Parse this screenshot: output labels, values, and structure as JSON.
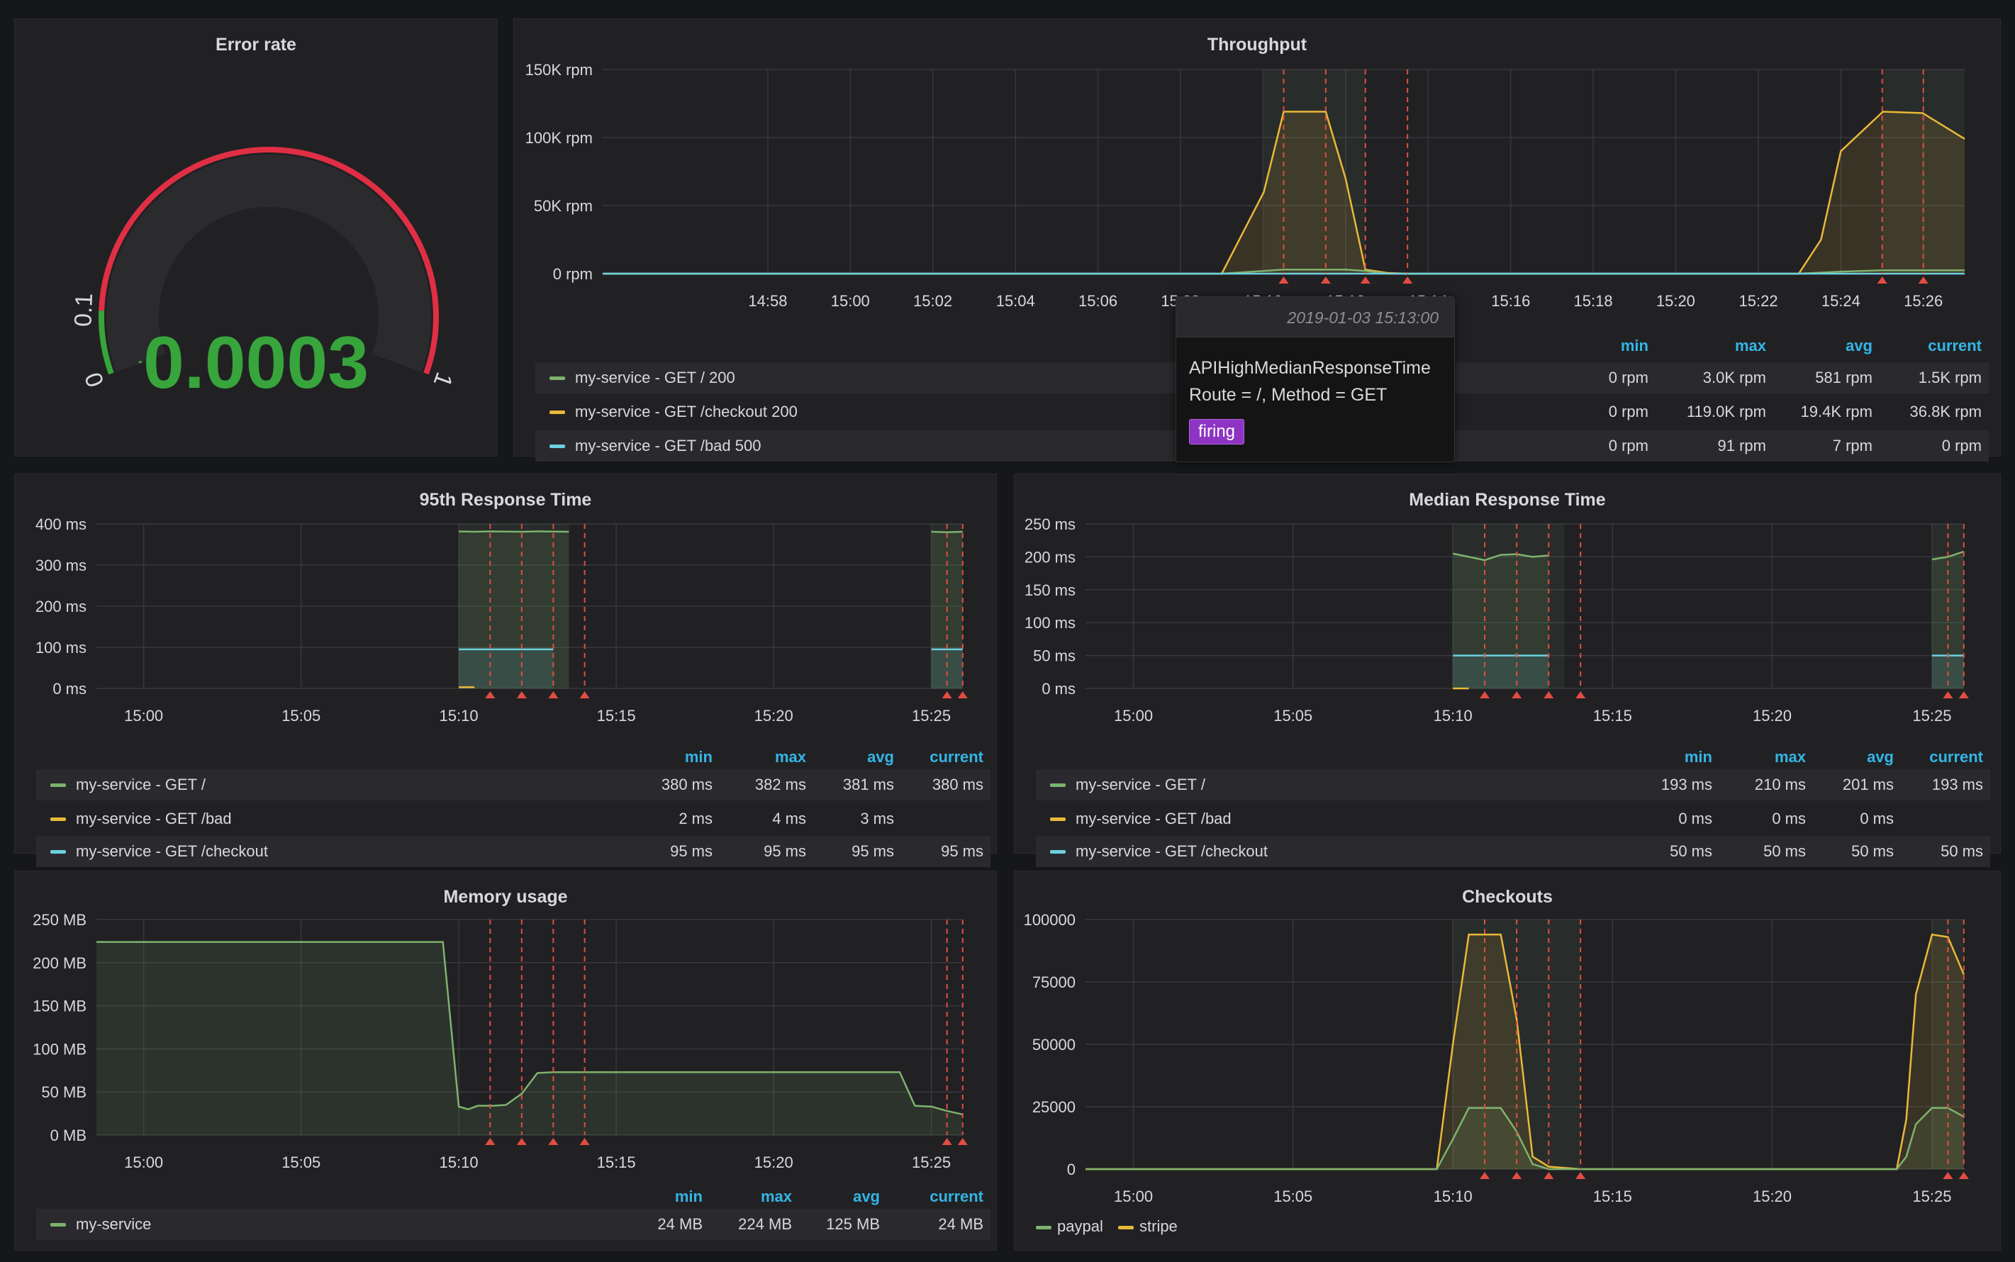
{
  "colors": {
    "green": "#7eb26d",
    "yellow": "#eab839",
    "cyan": "#6ed0e0",
    "red": "#e02f44",
    "alertRed": "#e24d42",
    "blue": "#33b5e5",
    "gaugeGreen": "#37a53b"
  },
  "legend_headers": {
    "min": "min",
    "max": "max",
    "avg": "avg",
    "current": "current"
  },
  "error_rate": {
    "title": "Error rate",
    "value": 0.0003,
    "value_text": "0.0003",
    "min_label": "0",
    "threshold_label": "0.1",
    "max_label": "1",
    "threshold": 0.1,
    "max": 1
  },
  "throughput": {
    "title": "Throughput",
    "legend": [
      {
        "name": "my-service - GET / 200",
        "min": "0 rpm",
        "max": "3.0K rpm",
        "avg": "581 rpm",
        "current": "1.5K rpm"
      },
      {
        "name": "my-service - GET /checkout 200",
        "min": "0 rpm",
        "max": "119.0K rpm",
        "avg": "19.4K rpm",
        "current": "36.8K rpm"
      },
      {
        "name": "my-service - GET /bad 500",
        "min": "0 rpm",
        "max": "91 rpm",
        "avg": "7 rpm",
        "current": "0 rpm"
      }
    ],
    "tooltip": {
      "time": "2019-01-03 15:13:00",
      "title": "APIHighMedianResponseTime",
      "detail": "Route = /, Method = GET",
      "state": "firing"
    }
  },
  "p95": {
    "title": "95th Response Time",
    "legend": [
      {
        "name": "my-service - GET /",
        "min": "380 ms",
        "max": "382 ms",
        "avg": "381 ms",
        "current": "380 ms"
      },
      {
        "name": "my-service - GET /bad",
        "min": "2 ms",
        "max": "4 ms",
        "avg": "3 ms",
        "current": ""
      },
      {
        "name": "my-service - GET /checkout",
        "min": "95 ms",
        "max": "95 ms",
        "avg": "95 ms",
        "current": "95 ms"
      }
    ]
  },
  "median": {
    "title": "Median Response Time",
    "legend": [
      {
        "name": "my-service - GET /",
        "min": "193 ms",
        "max": "210 ms",
        "avg": "201 ms",
        "current": "193 ms"
      },
      {
        "name": "my-service - GET /bad",
        "min": "0 ms",
        "max": "0 ms",
        "avg": "0 ms",
        "current": ""
      },
      {
        "name": "my-service - GET /checkout",
        "min": "50 ms",
        "max": "50 ms",
        "avg": "50 ms",
        "current": "50 ms"
      }
    ]
  },
  "memory": {
    "title": "Memory usage",
    "legend": [
      {
        "name": "my-service",
        "min": "24 MB",
        "max": "224 MB",
        "avg": "125 MB",
        "current": "24 MB"
      }
    ]
  },
  "checkouts": {
    "title": "Checkouts",
    "legend": [
      {
        "name": "paypal"
      },
      {
        "name": "stripe"
      }
    ]
  },
  "chart_data": [
    {
      "id": "throughput",
      "type": "area",
      "title": "Throughput",
      "ylim": [
        0,
        150000
      ],
      "yticks": [
        0,
        50000,
        100000,
        150000
      ],
      "ytick_labels": [
        "0 rpm",
        "50K rpm",
        "100K rpm",
        "150K rpm"
      ],
      "xlim": [
        14.9,
        15.45
      ],
      "xticks": [
        14.9667,
        15.0,
        15.0333,
        15.0667,
        15.1,
        15.1333,
        15.1667,
        15.2,
        15.2333,
        15.2667,
        15.3,
        15.3333,
        15.3667,
        15.4,
        15.4333
      ],
      "xtick_labels": [
        "14:58",
        "15:00",
        "15:02",
        "15:04",
        "15:06",
        "15:08",
        "15:10",
        "15:12",
        "15:14",
        "15:16",
        "15:18",
        "15:20",
        "15:22",
        "15:24",
        "15:26"
      ],
      "grid": true,
      "alerts": [
        15.175,
        15.192,
        15.208,
        15.225,
        15.4167,
        15.4333
      ],
      "alert_markers": [
        15.175,
        15.192,
        15.208,
        15.225,
        15.4167,
        15.4333
      ],
      "regions": [
        [
          15.167,
          15.208
        ],
        [
          15.4167,
          15.45
        ]
      ],
      "series": [
        {
          "name": "my-service - GET /checkout 200",
          "color": "#eab839",
          "fill": true,
          "x": [
            14.9,
            15.15,
            15.167,
            15.175,
            15.192,
            15.2,
            15.208,
            15.217,
            15.225,
            15.367,
            15.375,
            15.383,
            15.392,
            15.4,
            15.417,
            15.433,
            15.45
          ],
          "y": [
            0,
            0,
            60000,
            119000,
            119000,
            70000,
            3000,
            500,
            0,
            0,
            0,
            0,
            25000,
            90000,
            119000,
            118000,
            99000
          ]
        },
        {
          "name": "my-service - GET / 200",
          "color": "#7eb26d",
          "fill": false,
          "x": [
            14.9,
            15.15,
            15.167,
            15.175,
            15.2,
            15.208,
            15.217,
            15.383,
            15.4,
            15.417,
            15.45
          ],
          "y": [
            0,
            0,
            2000,
            3000,
            3000,
            2000,
            0,
            0,
            1500,
            2500,
            2500
          ]
        },
        {
          "name": "my-service - GET /bad 500",
          "color": "#6ed0e0",
          "fill": false,
          "x": [
            14.9,
            15.45
          ],
          "y": [
            0,
            0
          ]
        }
      ]
    },
    {
      "id": "p95",
      "type": "area",
      "title": "95th Response Time",
      "ylim": [
        0,
        400
      ],
      "yticks": [
        0,
        100,
        200,
        300,
        400
      ],
      "ytick_labels": [
        "0 ms",
        "100 ms",
        "200 ms",
        "300 ms",
        "400 ms"
      ],
      "xlim": [
        14.975,
        15.433
      ],
      "xticks": [
        15.0,
        15.0833,
        15.1667,
        15.25,
        15.3333,
        15.4167
      ],
      "xtick_labels": [
        "15:00",
        "15:05",
        "15:10",
        "15:15",
        "15:20",
        "15:25"
      ],
      "grid": true,
      "alerts": [
        15.1833,
        15.2,
        15.2167,
        15.2333,
        15.425,
        15.4333
      ],
      "alert_markers": [
        15.1833,
        15.2,
        15.2167,
        15.2333,
        15.425,
        15.4333
      ],
      "regions": [
        [
          15.1667,
          15.225
        ],
        [
          15.4167,
          15.4333
        ]
      ],
      "series": [
        {
          "name": "my-service - GET /",
          "color": "#7eb26d",
          "fill": true,
          "segments": [
            {
              "x": [
                15.1667,
                15.175,
                15.1833,
                15.2,
                15.2083,
                15.225
              ],
              "y": [
                382,
                381,
                382,
                381,
                382,
                381
              ]
            },
            {
              "x": [
                15.4167,
                15.425,
                15.4333
              ],
              "y": [
                381,
                380,
                381
              ]
            }
          ]
        },
        {
          "name": "my-service - GET /checkout",
          "color": "#6ed0e0",
          "fill": true,
          "segments": [
            {
              "x": [
                15.1667,
                15.2167
              ],
              "y": [
                95,
                95
              ]
            },
            {
              "x": [
                15.4167,
                15.4333
              ],
              "y": [
                95,
                95
              ]
            }
          ]
        },
        {
          "name": "my-service - GET /bad",
          "color": "#eab839",
          "fill": false,
          "segments": [
            {
              "x": [
                15.1667,
                15.175
              ],
              "y": [
                3,
                3
              ]
            }
          ]
        }
      ]
    },
    {
      "id": "median",
      "type": "area",
      "title": "Median Response Time",
      "ylim": [
        0,
        250
      ],
      "yticks": [
        0,
        50,
        100,
        150,
        200,
        250
      ],
      "ytick_labels": [
        "0 ms",
        "50 ms",
        "100 ms",
        "150 ms",
        "200 ms",
        "250 ms"
      ],
      "xlim": [
        14.975,
        15.433
      ],
      "xticks": [
        15.0,
        15.0833,
        15.1667,
        15.25,
        15.3333,
        15.4167
      ],
      "xtick_labels": [
        "15:00",
        "15:05",
        "15:10",
        "15:15",
        "15:20",
        "15:25"
      ],
      "grid": true,
      "alerts": [
        15.1833,
        15.2,
        15.2167,
        15.2333,
        15.425,
        15.4333
      ],
      "alert_markers": [
        15.1833,
        15.2,
        15.2167,
        15.2333,
        15.425,
        15.4333
      ],
      "regions": [
        [
          15.1667,
          15.225
        ],
        [
          15.4167,
          15.4333
        ]
      ],
      "series": [
        {
          "name": "my-service - GET /",
          "color": "#7eb26d",
          "fill": true,
          "segments": [
            {
              "x": [
                15.1667,
                15.175,
                15.1833,
                15.1917,
                15.2,
                15.2083,
                15.2167
              ],
              "y": [
                205,
                200,
                195,
                203,
                204,
                200,
                202
              ]
            },
            {
              "x": [
                15.4167,
                15.425,
                15.4333
              ],
              "y": [
                196,
                200,
                208
              ]
            }
          ]
        },
        {
          "name": "my-service - GET /checkout",
          "color": "#6ed0e0",
          "fill": true,
          "segments": [
            {
              "x": [
                15.1667,
                15.2167
              ],
              "y": [
                50,
                50
              ]
            },
            {
              "x": [
                15.4167,
                15.4333
              ],
              "y": [
                50,
                50
              ]
            }
          ]
        },
        {
          "name": "my-service - GET /bad",
          "color": "#eab839",
          "fill": false,
          "segments": [
            {
              "x": [
                15.1667,
                15.175
              ],
              "y": [
                0,
                0
              ]
            }
          ]
        }
      ]
    },
    {
      "id": "memory",
      "type": "area",
      "title": "Memory usage",
      "ylim": [
        0,
        250
      ],
      "yticks": [
        0,
        50,
        100,
        150,
        200,
        250
      ],
      "ytick_labels": [
        "0 MB",
        "50 MB",
        "100 MB",
        "150 MB",
        "200 MB",
        "250 MB"
      ],
      "xlim": [
        14.975,
        15.433
      ],
      "xticks": [
        15.0,
        15.0833,
        15.1667,
        15.25,
        15.3333,
        15.4167
      ],
      "xtick_labels": [
        "15:00",
        "15:05",
        "15:10",
        "15:15",
        "15:20",
        "15:25"
      ],
      "grid": true,
      "alerts": [
        15.1833,
        15.2,
        15.2167,
        15.2333,
        15.425,
        15.4333
      ],
      "alert_markers": [
        15.1833,
        15.2,
        15.2167,
        15.2333,
        15.425,
        15.4333
      ],
      "regions": [],
      "series": [
        {
          "name": "my-service",
          "color": "#7eb26d",
          "fill": true,
          "x": [
            14.975,
            15.1583,
            15.1667,
            15.1717,
            15.1767,
            15.185,
            15.1917,
            15.2,
            15.2083,
            15.2167,
            15.4,
            15.408,
            15.417,
            15.425,
            15.4333
          ],
          "y": [
            224,
            224,
            33,
            30,
            34,
            34,
            35,
            48,
            72,
            73,
            73,
            34,
            33,
            28,
            24
          ]
        }
      ]
    },
    {
      "id": "checkouts",
      "type": "area",
      "title": "Checkouts",
      "ylim": [
        0,
        100000
      ],
      "yticks": [
        0,
        25000,
        50000,
        75000,
        100000
      ],
      "ytick_labels": [
        "0",
        "25000",
        "50000",
        "75000",
        "100000"
      ],
      "xlim": [
        14.975,
        15.433
      ],
      "xticks": [
        15.0,
        15.0833,
        15.1667,
        15.25,
        15.3333,
        15.4167
      ],
      "xtick_labels": [
        "15:00",
        "15:05",
        "15:10",
        "15:15",
        "15:20",
        "15:25"
      ],
      "grid": true,
      "alerts": [
        15.1833,
        15.2,
        15.2167,
        15.2333,
        15.425,
        15.4333
      ],
      "alert_markers": [
        15.1833,
        15.2,
        15.2167,
        15.2333,
        15.425,
        15.4333
      ],
      "regions": [
        [
          15.1667,
          15.2333
        ],
        [
          15.4167,
          15.4333
        ]
      ],
      "series": [
        {
          "name": "stripe",
          "color": "#eab839",
          "fill": true,
          "x": [
            14.975,
            15.1583,
            15.1667,
            15.175,
            15.1917,
            15.2,
            15.2083,
            15.2167,
            15.2333,
            15.3983,
            15.4033,
            15.4083,
            15.4167,
            15.425,
            15.4333
          ],
          "y": [
            0,
            0,
            50000,
            94000,
            94000,
            60000,
            5000,
            1000,
            0,
            0,
            20000,
            70000,
            94000,
            93000,
            78000
          ]
        },
        {
          "name": "paypal",
          "color": "#7eb26d",
          "fill": true,
          "x": [
            14.975,
            15.1583,
            15.1667,
            15.175,
            15.1917,
            15.2,
            15.2083,
            15.2167,
            15.2333,
            15.3983,
            15.4033,
            15.4083,
            15.4167,
            15.425,
            15.4333
          ],
          "y": [
            0,
            0,
            12000,
            24500,
            24500,
            15000,
            2000,
            0,
            0,
            0,
            5000,
            18000,
            24500,
            24500,
            21000
          ]
        }
      ]
    }
  ]
}
